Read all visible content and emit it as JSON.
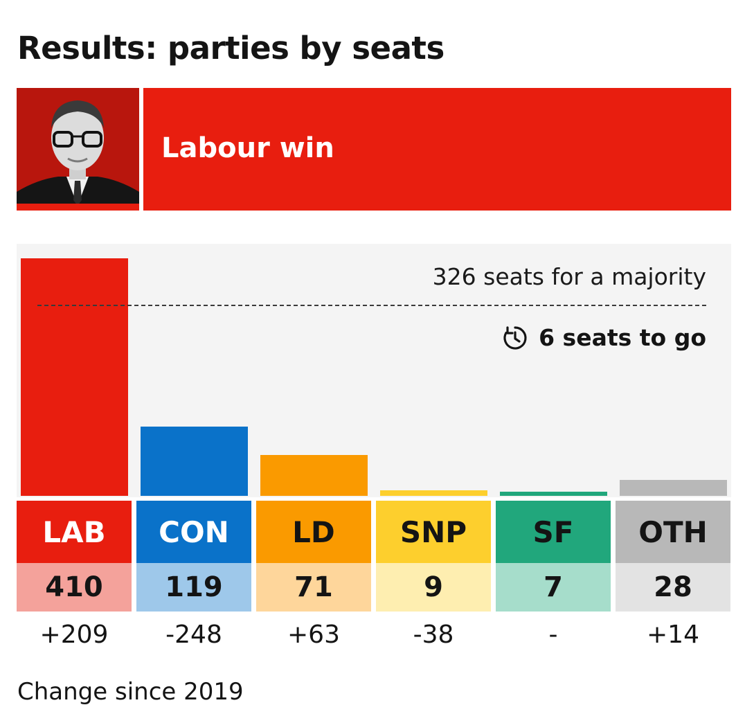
{
  "title": "Results: parties by seats",
  "banner": {
    "text": "Labour win",
    "photo_icon": "party-leader-portrait"
  },
  "annotations": {
    "majority_text": "326 seats for a majority",
    "majority_value": 326,
    "to_go_text": "6 seats to go",
    "to_go_icon": "clock-countdown-icon"
  },
  "footnote": "Change since 2019",
  "colors": {
    "banner": "#e81e0f",
    "plot_bg": "#f4f4f4"
  },
  "chart_data": {
    "type": "bar",
    "title": "Results: parties by seats",
    "xlabel": "",
    "ylabel": "",
    "grid": false,
    "ylim": [
      0,
      410
    ],
    "majority_line": 326,
    "categories": [
      "LAB",
      "CON",
      "LD",
      "SNP",
      "SF",
      "OTH"
    ],
    "values": [
      410,
      119,
      71,
      9,
      7,
      28
    ],
    "changes": [
      "+209",
      "-248",
      "+63",
      "-38",
      "-",
      "+14"
    ],
    "party_colors": [
      "#e81e0f",
      "#0a72c9",
      "#fa9a00",
      "#fdcf2d",
      "#21a77c",
      "#b8b8b8"
    ],
    "label_text_colors": [
      "#ffffff",
      "#ffffff",
      "#141414",
      "#141414",
      "#141414",
      "#141414"
    ],
    "value_bg_colors": [
      "#f4a29b",
      "#9ec8ea",
      "#fed69b",
      "#feeeb0",
      "#a6ddcb",
      "#e3e3e3"
    ]
  }
}
